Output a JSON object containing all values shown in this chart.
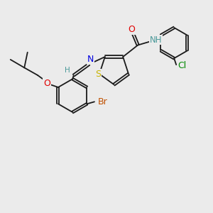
{
  "bg_color": "#ebebeb",
  "bond_color": "#1a1a1a",
  "S_color": "#c8b400",
  "N_color": "#0000e0",
  "O_color": "#e00000",
  "Br_color": "#c05000",
  "Cl_color": "#008800",
  "H_color": "#4a9999",
  "bond_lw": 1.3,
  "dbl_off": 0.055,
  "figsize": [
    3.0,
    3.0
  ],
  "dpi": 100,
  "xlim": [
    0,
    10
  ],
  "ylim": [
    0,
    10
  ]
}
